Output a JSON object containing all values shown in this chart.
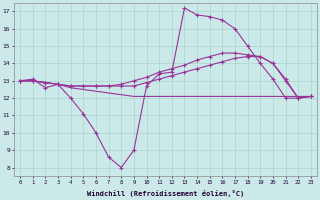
{
  "title": "",
  "xlabel": "Windchill (Refroidissement éolien,°C)",
  "background_color": "#cbe9e9",
  "grid_color": "#aad4cc",
  "line_color": "#993399",
  "x_values": [
    0,
    1,
    2,
    3,
    4,
    5,
    6,
    7,
    8,
    9,
    10,
    11,
    12,
    13,
    14,
    15,
    16,
    17,
    18,
    19,
    20,
    21,
    22,
    23
  ],
  "series1": [
    13.0,
    13.1,
    12.6,
    12.8,
    12.0,
    11.1,
    10.0,
    8.6,
    8.0,
    9.0,
    12.7,
    13.4,
    13.5,
    17.2,
    16.8,
    16.7,
    16.5,
    16.0,
    15.0,
    14.0,
    13.1,
    12.0,
    12.0,
    12.1
  ],
  "series2": [
    13.0,
    13.0,
    12.9,
    12.8,
    12.6,
    12.5,
    12.4,
    12.3,
    12.2,
    12.1,
    12.1,
    12.1,
    12.1,
    12.1,
    12.1,
    12.1,
    12.1,
    12.1,
    12.1,
    12.1,
    12.1,
    12.1,
    12.1,
    12.1
  ],
  "series3": [
    13.0,
    13.0,
    12.9,
    12.8,
    12.7,
    12.7,
    12.7,
    12.7,
    12.7,
    12.7,
    12.9,
    13.1,
    13.3,
    13.5,
    13.7,
    13.9,
    14.1,
    14.3,
    14.4,
    14.4,
    14.0,
    13.1,
    12.0,
    12.1
  ],
  "series4": [
    13.0,
    13.0,
    12.9,
    12.8,
    12.7,
    12.7,
    12.7,
    12.7,
    12.8,
    13.0,
    13.2,
    13.5,
    13.7,
    13.9,
    14.2,
    14.4,
    14.6,
    14.6,
    14.5,
    14.4,
    14.0,
    13.0,
    12.0,
    12.1
  ],
  "ylim": [
    7.5,
    17.5
  ],
  "yticks": [
    8,
    9,
    10,
    11,
    12,
    13,
    14,
    15,
    16,
    17
  ],
  "xlim": [
    -0.5,
    23.5
  ]
}
